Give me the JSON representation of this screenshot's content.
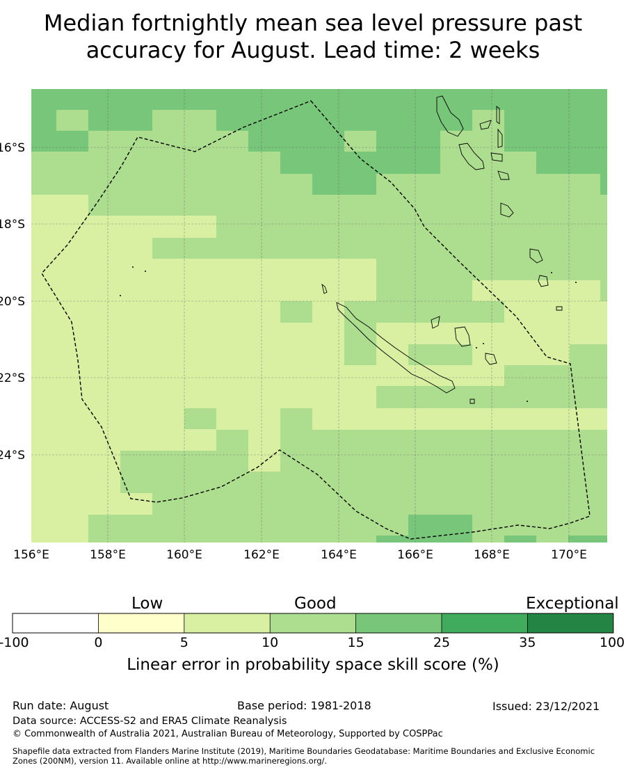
{
  "title": {
    "line1": "Median fortnightly mean sea level pressure past",
    "line2": "accuracy for August. Lead time: 2 weeks"
  },
  "map": {
    "lon_labels": [
      "156°E",
      "158°E",
      "160°E",
      "162°E",
      "164°E",
      "166°E",
      "168°E",
      "170°E"
    ],
    "lat_labels": [
      "16°S",
      "18°S",
      "20°S",
      "22°S",
      "24°S"
    ],
    "gridlines": true,
    "eez_boundary": "dashed",
    "coastlines": "black outline"
  },
  "colorbar": {
    "words": {
      "low": "Low",
      "good": "Good",
      "exceptional": "Exceptional"
    },
    "ticks": [
      "-100",
      "0",
      "5",
      "10",
      "15",
      "25",
      "35",
      "100"
    ],
    "colors": [
      "#ffffff",
      "#ffffcc",
      "#d9f0a3",
      "#addd8e",
      "#78c679",
      "#41ab5d",
      "#238443"
    ],
    "label": "Linear error in probability space skill score (%)"
  },
  "legend_colors": {
    "c5": "#d9f0a3",
    "c10": "#addd8e",
    "c15": "#78c679"
  },
  "footer": {
    "run_date": "Run date: August",
    "base_period": "Base period: 1981-2018",
    "issued": "Issued: 23/12/2021",
    "data_source": "Data source: ACCESS-S2 and ERA5 Climate Reanalysis",
    "copyright": "© Commonwealth of Australia 2021, Australian Bureau of Meteorology, Supported by COSPPac",
    "shapefile_line1": "Shapefile data extracted from Flanders Marine Institute (2019), Maritime Boundaries Geodatabase: Maritime Boundaries and Exclusive Economic",
    "shapefile_line2": "Zones (200NM), version 11. Available online at http://www.marineregions.org/."
  }
}
